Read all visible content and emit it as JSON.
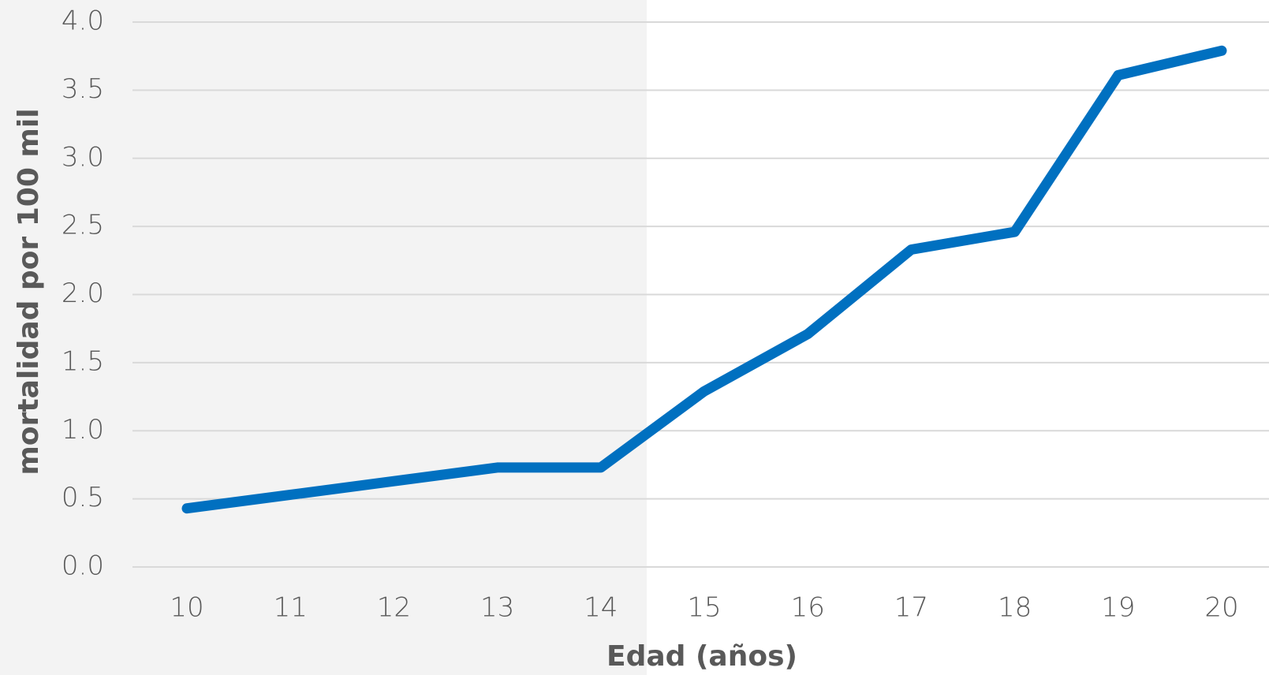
{
  "chart_data": {
    "type": "line",
    "x_label": "Edad (años)",
    "y_label": "mortalidad por 100 mil",
    "categories": [
      "10",
      "11",
      "12",
      "13",
      "14",
      "15",
      "16",
      "17",
      "18",
      "19",
      "20"
    ],
    "series": [
      {
        "name": "mortalidad",
        "color": "#0070c0",
        "values": [
          0.43,
          0.53,
          0.63,
          0.73,
          0.73,
          1.29,
          1.71,
          2.33,
          2.46,
          3.61,
          3.79
        ]
      }
    ],
    "ylim": [
      0,
      4
    ],
    "yticks": [
      {
        "value": 0,
        "label": "0.0"
      },
      {
        "value": 0.5,
        "label": "0.5"
      },
      {
        "value": 1,
        "label": "1.0"
      },
      {
        "value": 1.5,
        "label": "1.5"
      },
      {
        "value": 2,
        "label": "2.0"
      },
      {
        "value": 2.5,
        "label": "2.5"
      },
      {
        "value": 3,
        "label": "3.0"
      },
      {
        "value": 3.5,
        "label": "3.5"
      },
      {
        "value": 4,
        "label": "4.0"
      }
    ],
    "grid": true,
    "legend": false
  }
}
